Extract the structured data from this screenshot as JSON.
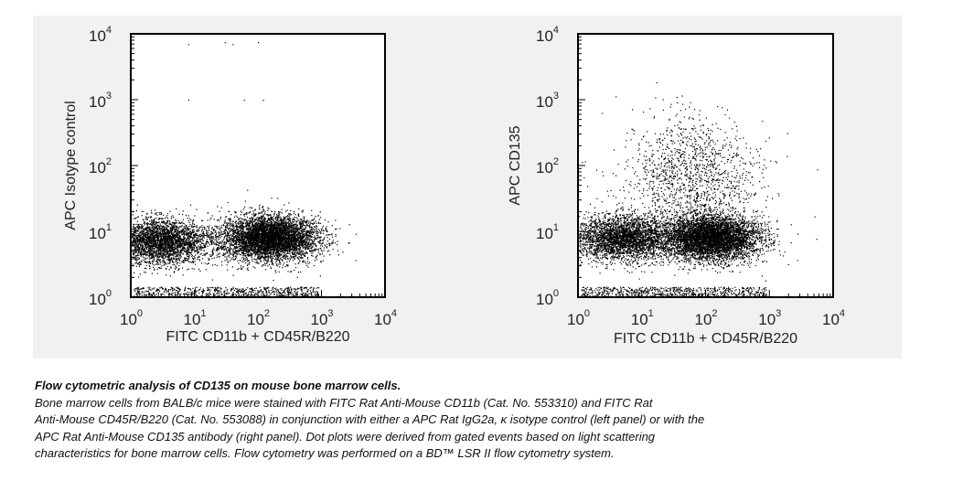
{
  "chart_data": [
    {
      "type": "scatter",
      "panel": "left",
      "xlabel": "FITC CD11b + CD45R/B220",
      "ylabel": "APC Isotype control",
      "xscale": "log",
      "yscale": "log",
      "xlim": [
        1,
        10000
      ],
      "ylim": [
        1,
        10000
      ],
      "xticks": [
        {
          "base": "10",
          "exp": "0"
        },
        {
          "base": "10",
          "exp": "1"
        },
        {
          "base": "10",
          "exp": "2"
        },
        {
          "base": "10",
          "exp": "3"
        },
        {
          "base": "10",
          "exp": "4"
        }
      ],
      "yticks": [
        {
          "base": "10",
          "exp": "0"
        },
        {
          "base": "10",
          "exp": "1"
        },
        {
          "base": "10",
          "exp": "2"
        },
        {
          "base": "10",
          "exp": "3"
        },
        {
          "base": "10",
          "exp": "4"
        }
      ],
      "populations": [
        {
          "center_x": 150,
          "center_y": 8,
          "relative_density": "high"
        },
        {
          "center_x": 3,
          "center_y": 7,
          "relative_density": "medium"
        }
      ],
      "outliers": [
        [
          8,
          7000
        ],
        [
          30,
          7500
        ],
        [
          40,
          7000
        ],
        [
          100,
          7500
        ],
        [
          8,
          1000
        ],
        [
          60,
          1000
        ],
        [
          120,
          1000
        ]
      ]
    },
    {
      "type": "scatter",
      "panel": "right",
      "xlabel": "FITC CD11b + CD45R/B220",
      "ylabel": "APC CD135",
      "xscale": "log",
      "yscale": "log",
      "xlim": [
        1,
        10000
      ],
      "ylim": [
        1,
        10000
      ],
      "xticks": [
        {
          "base": "10",
          "exp": "0"
        },
        {
          "base": "10",
          "exp": "1"
        },
        {
          "base": "10",
          "exp": "2"
        },
        {
          "base": "10",
          "exp": "3"
        },
        {
          "base": "10",
          "exp": "4"
        }
      ],
      "yticks": [
        {
          "base": "10",
          "exp": "0"
        },
        {
          "base": "10",
          "exp": "1"
        },
        {
          "base": "10",
          "exp": "2"
        },
        {
          "base": "10",
          "exp": "3"
        },
        {
          "base": "10",
          "exp": "4"
        }
      ],
      "populations": [
        {
          "center_x": 120,
          "center_y": 8,
          "relative_density": "high"
        },
        {
          "center_x": 5,
          "center_y": 8,
          "relative_density": "medium"
        },
        {
          "center_x": 60,
          "center_y": 60,
          "relative_density": "low"
        }
      ],
      "outliers": [
        [
          40,
          700
        ],
        [
          200,
          600
        ],
        [
          80,
          500
        ],
        [
          300,
          400
        ]
      ]
    }
  ],
  "caption": {
    "title": "Flow cytometric analysis of CD135 on mouse bone marrow cells.",
    "lines": [
      "Bone marrow cells from BALB/c mice were stained with FITC Rat Anti-Mouse CD11b (Cat. No. 553310) and FITC Rat",
      "Anti-Mouse CD45R/B220 (Cat. No. 553088) in conjunction with either a APC Rat IgG2a, κ isotype control (left panel) or with the",
      "APC Rat Anti-Mouse CD135 antibody (right panel).  Dot plots were derived from gated events based on light scattering",
      "characteristics for bone marrow cells.  Flow cytometry was performed on a BD™ LSR II flow cytometry system."
    ]
  }
}
